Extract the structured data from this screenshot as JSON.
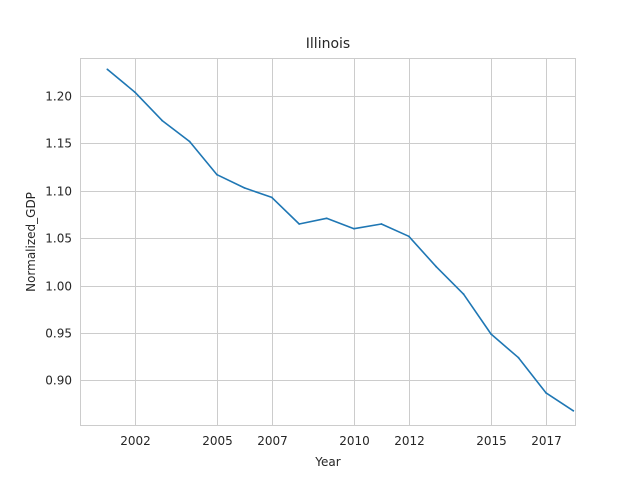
{
  "chart_data": {
    "type": "line",
    "title": "Illinois",
    "xlabel": "Year",
    "ylabel": "Normalized_GDP",
    "xlim": [
      2000.0,
      2018.1
    ],
    "ylim": [
      0.852,
      1.24
    ],
    "grid": true,
    "x_ticks": [
      2002,
      2005,
      2007,
      2010,
      2012,
      2015,
      2017
    ],
    "x_tick_labels": [
      "2002",
      "2005",
      "2007",
      "2010",
      "2012",
      "2015",
      "2017"
    ],
    "y_ticks": [
      0.9,
      0.95,
      1.0,
      1.05,
      1.1,
      1.15,
      1.2
    ],
    "y_tick_labels": [
      "0.90",
      "0.95",
      "1.00",
      "1.05",
      "1.10",
      "1.15",
      "1.20"
    ],
    "series": [
      {
        "color": "#1f77b4",
        "x": [
          2001,
          2002,
          2003,
          2004,
          2005,
          2006,
          2007,
          2008,
          2009,
          2010,
          2011,
          2012,
          2013,
          2014,
          2015,
          2016,
          2017,
          2018
        ],
        "y": [
          1.228,
          1.204,
          1.174,
          1.152,
          1.117,
          1.103,
          1.093,
          1.065,
          1.071,
          1.06,
          1.065,
          1.052,
          1.02,
          0.991,
          0.949,
          0.924,
          0.887,
          0.868
        ]
      }
    ]
  }
}
